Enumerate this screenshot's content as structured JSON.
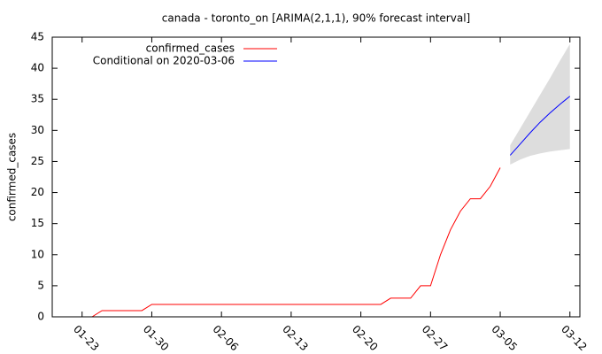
{
  "chart_data": {
    "type": "line",
    "title": "canada - toronto_on [ARIMA(2,1,1), 90% forecast interval]",
    "y_label": "confirmed_cases",
    "xlim": [
      "01-20",
      "03-13"
    ],
    "xticks": [
      "01-23",
      "01-30",
      "02-06",
      "02-13",
      "02-20",
      "02-27",
      "03-05",
      "03-12"
    ],
    "ylim": [
      0,
      45
    ],
    "yticks": [
      0,
      5,
      10,
      15,
      20,
      25,
      30,
      35,
      40,
      45
    ],
    "legend": "top-left",
    "series": [
      {
        "name": "confirmed_cases",
        "color": "#ff0000",
        "x": [
          "01-24",
          "01-25",
          "01-26",
          "01-27",
          "01-28",
          "01-29",
          "01-30",
          "01-31",
          "02-01",
          "02-02",
          "02-03",
          "02-04",
          "02-05",
          "02-06",
          "02-07",
          "02-08",
          "02-09",
          "02-10",
          "02-11",
          "02-12",
          "02-13",
          "02-14",
          "02-15",
          "02-16",
          "02-17",
          "02-18",
          "02-19",
          "02-20",
          "02-21",
          "02-22",
          "02-23",
          "02-24",
          "02-25",
          "02-26",
          "02-27",
          "02-28",
          "02-29",
          "03-01",
          "03-02",
          "03-03",
          "03-04",
          "03-05"
        ],
        "values": [
          0,
          1,
          1,
          1,
          1,
          1,
          2,
          2,
          2,
          2,
          2,
          2,
          2,
          2,
          2,
          2,
          2,
          2,
          2,
          2,
          2,
          2,
          2,
          2,
          2,
          2,
          2,
          2,
          2,
          2,
          3,
          3,
          3,
          5,
          5,
          10,
          14,
          17,
          19,
          19,
          21,
          24
        ]
      },
      {
        "name": "Conditional on 2020-03-06",
        "color": "#0000ff",
        "band_color": "#dddddd",
        "x": [
          "03-06",
          "03-07",
          "03-08",
          "03-09",
          "03-10",
          "03-11",
          "03-12"
        ],
        "values": [
          26,
          27.8,
          29.6,
          31.3,
          32.8,
          34.2,
          35.5
        ],
        "lower": [
          24.5,
          25.3,
          25.9,
          26.3,
          26.6,
          26.8,
          27
        ],
        "upper": [
          27.6,
          30.3,
          33,
          35.7,
          38.4,
          41.2,
          43.9
        ]
      }
    ]
  }
}
